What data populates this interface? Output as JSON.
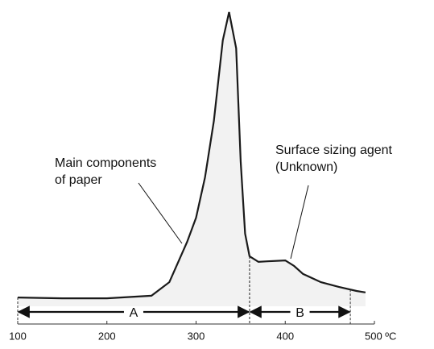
{
  "chart_data": {
    "type": "line",
    "x": [
      100,
      150,
      200,
      250,
      270,
      290,
      300,
      310,
      320,
      330,
      337,
      345,
      350,
      355,
      360,
      370,
      380,
      400,
      410,
      420,
      440,
      460,
      480,
      490
    ],
    "values": [
      3.0,
      2.7,
      2.7,
      3.6,
      8.2,
      21.9,
      30.1,
      43.8,
      63.0,
      90.4,
      100,
      87.7,
      49.3,
      24.7,
      17.0,
      15.1,
      15.3,
      15.6,
      13.7,
      11.0,
      8.2,
      6.6,
      5.2,
      4.7
    ],
    "color": "#1a1a1a",
    "xlim": [
      100,
      500
    ],
    "ylim": [
      0,
      100
    ],
    "xticks": [
      100,
      200,
      300,
      400,
      {
        "value": 500,
        "label": "500 ºC"
      }
    ],
    "ranges": [
      {
        "label": "A",
        "from": 100,
        "to": 360
      },
      {
        "label": "B",
        "from": 360,
        "to": 473
      }
    ],
    "annotations": [
      {
        "text": [
          "Main components",
          "of paper"
        ]
      },
      {
        "text": [
          "Surface sizing agent",
          "(Unknown)"
        ]
      }
    ]
  }
}
